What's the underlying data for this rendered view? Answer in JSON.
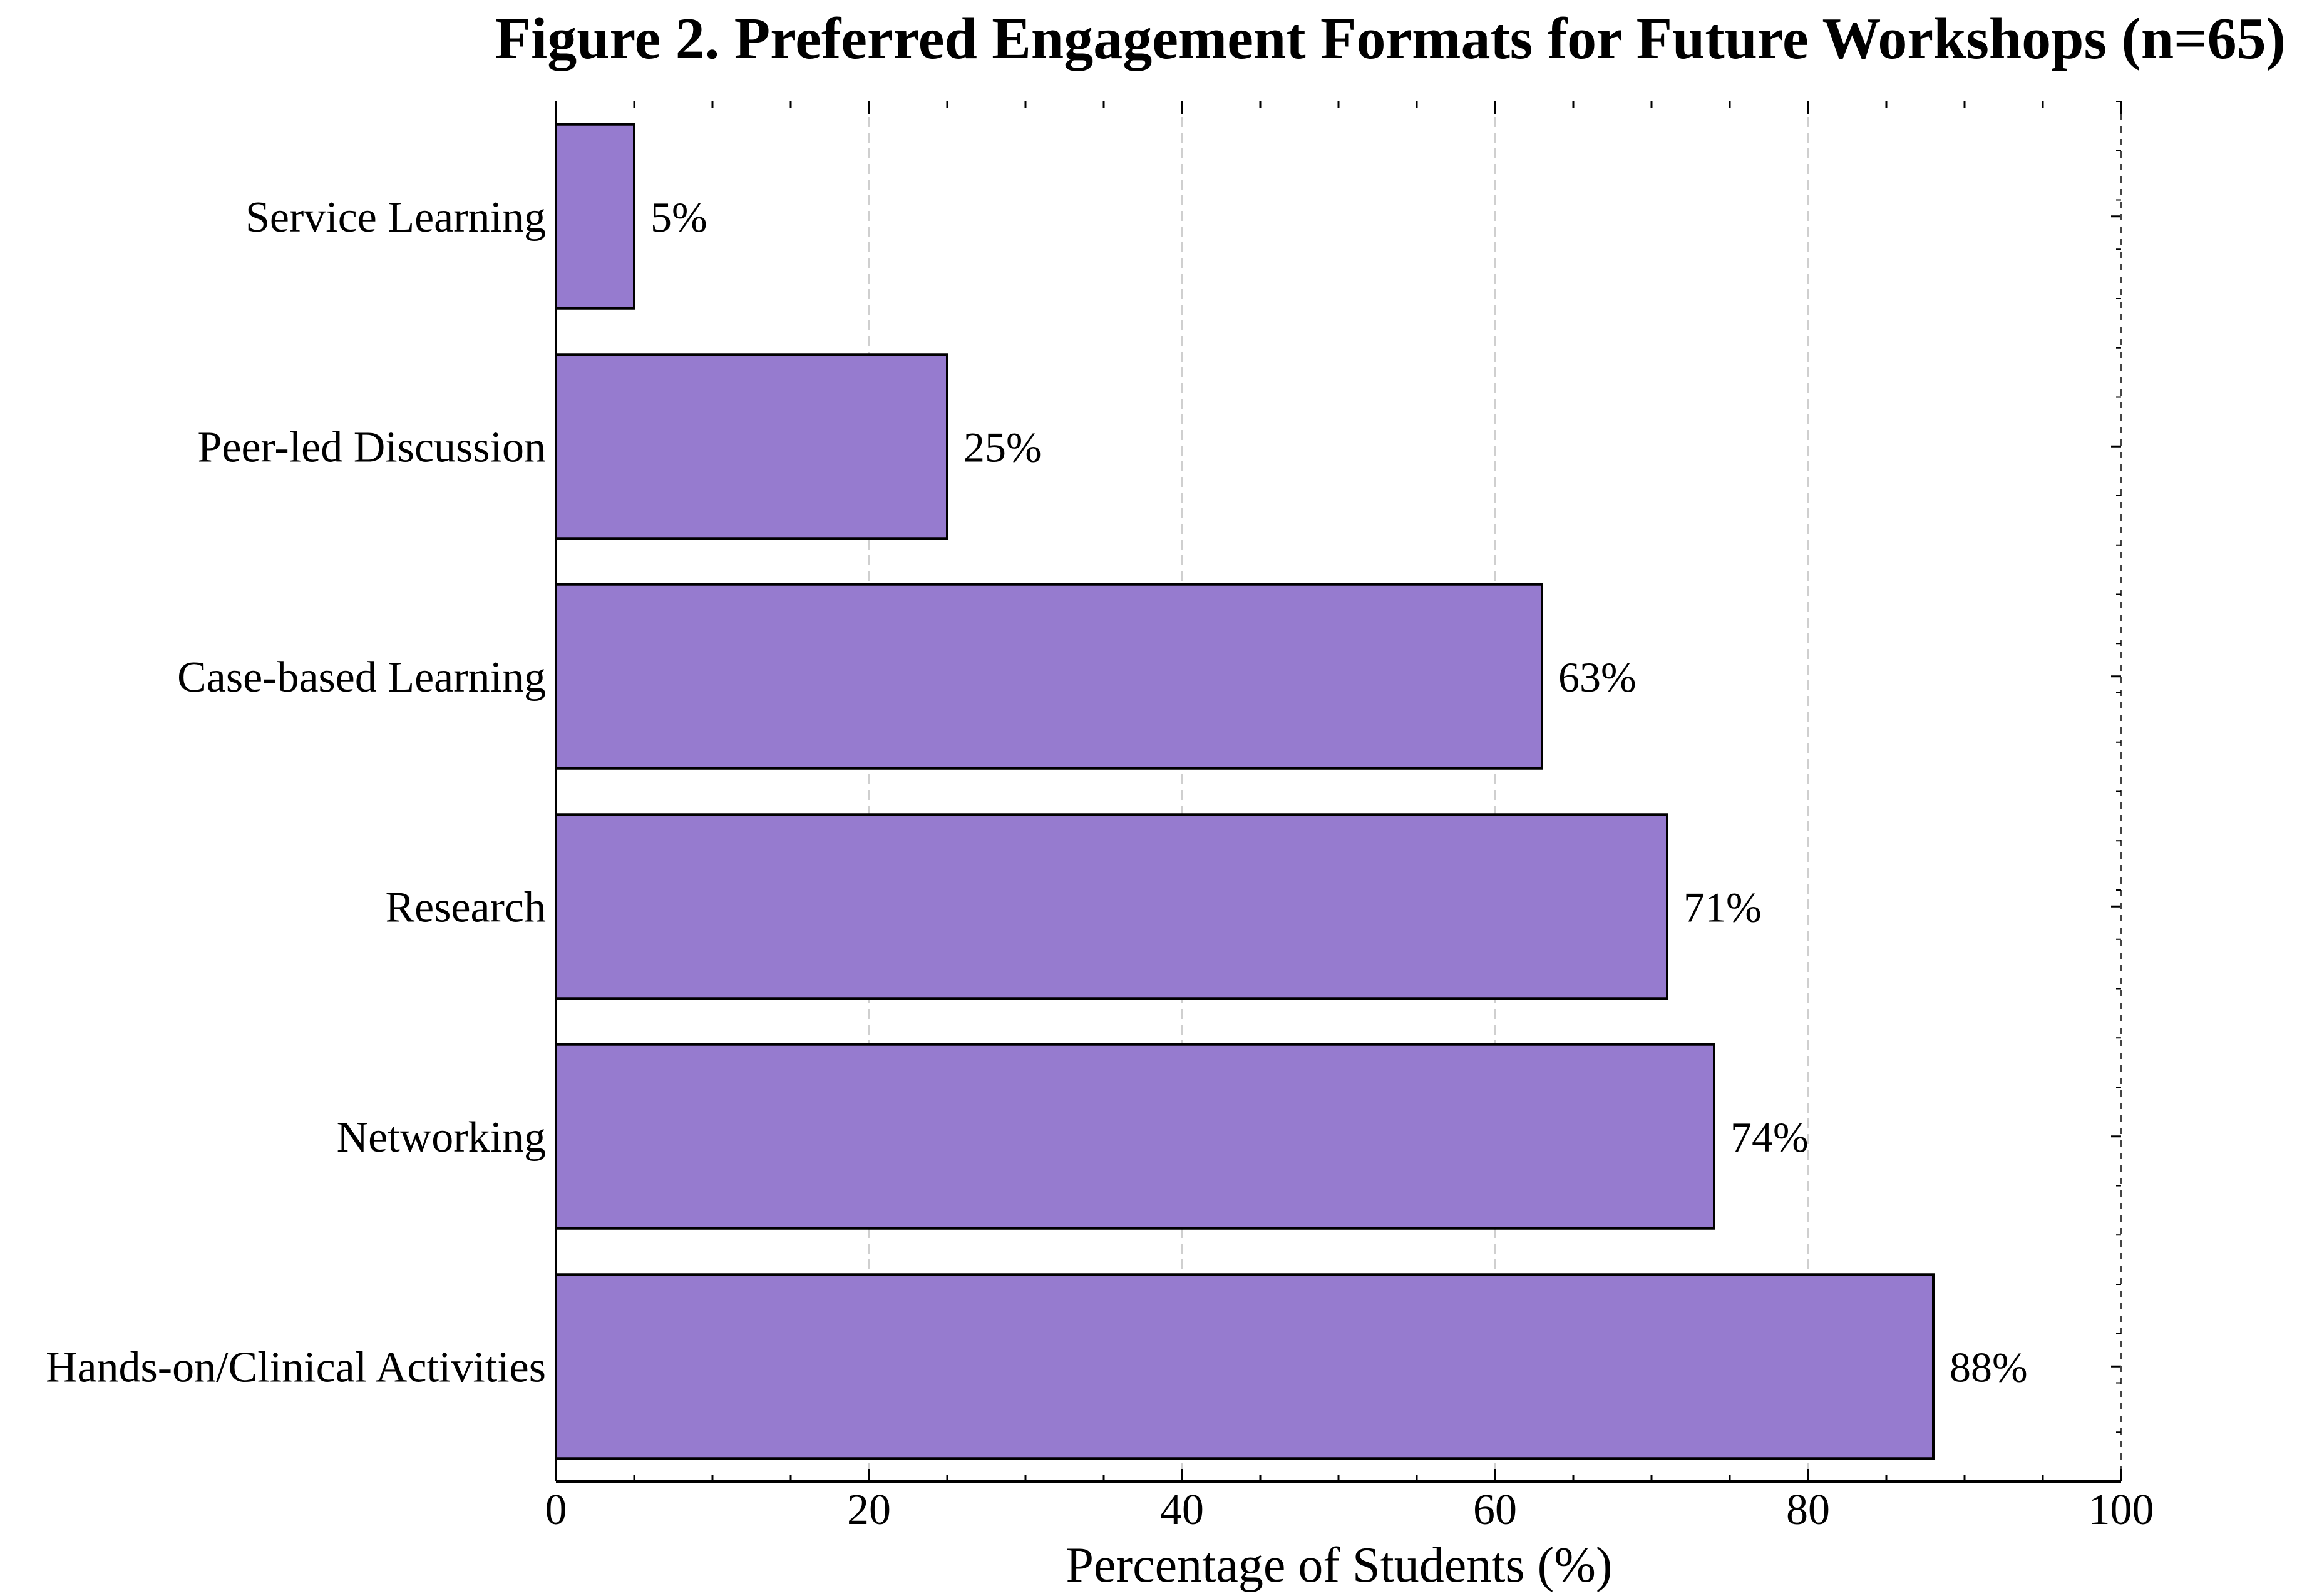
{
  "chart_data": {
    "type": "bar",
    "orientation": "horizontal",
    "title": "Figure 2. Preferred Engagement Formats for Future Workshops (n=65)",
    "xlabel": "Percentage of Students (%)",
    "ylabel": "",
    "xlim": [
      0,
      100
    ],
    "xticks": [
      0,
      20,
      40,
      60,
      80,
      100
    ],
    "grid": "vertical dashed",
    "bar_color": "#967bcf",
    "edge_color": "#000000",
    "categories": [
      "Service Learning",
      "Peer-led Discussion",
      "Case-based Learning",
      "Research",
      "Networking",
      "Hands-on/Clinical Activities"
    ],
    "values": [
      5,
      25,
      63,
      71,
      74,
      88
    ],
    "value_labels": [
      "5%",
      "25%",
      "63%",
      "71%",
      "74%",
      "88%"
    ]
  }
}
